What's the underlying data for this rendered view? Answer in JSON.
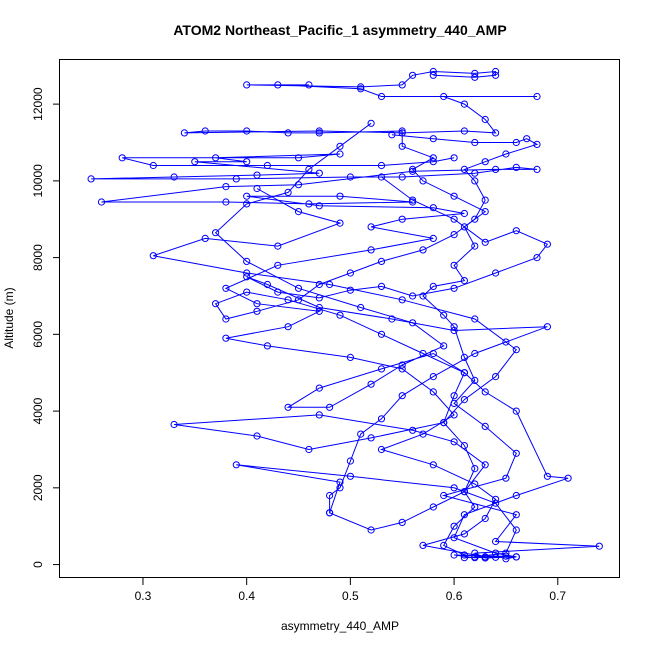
{
  "chart_data": {
    "type": "scatter",
    "title": "ATOM2 Northeast_Pacific_1 asymmetry_440_AMP",
    "xlabel": "asymmetry_440_AMP",
    "ylabel": "Altitude (m)",
    "xlim": [
      0.22,
      0.76
    ],
    "ylim": [
      -350,
      13150
    ],
    "x_ticks": [
      0.3,
      0.4,
      0.5,
      0.6,
      0.7
    ],
    "x_tick_labels": [
      "0.3",
      "0.4",
      "0.5",
      "0.6",
      "0.7"
    ],
    "y_ticks": [
      0,
      2000,
      4000,
      6000,
      8000,
      10000,
      12000
    ],
    "y_tick_labels": [
      "0",
      "2000",
      "4000",
      "6000",
      "8000",
      "10000",
      "12000"
    ],
    "grid": false,
    "legend": "none",
    "color": "#0000ff",
    "markers": "open-circle",
    "connected": true,
    "series": [
      {
        "values": [
          [
            0.61,
            180
          ],
          [
            0.63,
            200
          ],
          [
            0.64,
            190
          ],
          [
            0.65,
            220
          ],
          [
            0.62,
            180
          ],
          [
            0.6,
            250
          ],
          [
            0.66,
            200
          ],
          [
            0.63,
            170
          ],
          [
            0.62,
            300
          ],
          [
            0.74,
            480
          ],
          [
            0.64,
            600
          ],
          [
            0.66,
            1300
          ],
          [
            0.59,
            1800
          ],
          [
            0.65,
            2250
          ],
          [
            0.66,
            2900
          ],
          [
            0.63,
            3600
          ],
          [
            0.6,
            4200
          ],
          [
            0.62,
            4800
          ],
          [
            0.61,
            5400
          ],
          [
            0.6,
            6200
          ],
          [
            0.59,
            6500
          ],
          [
            0.57,
            7000
          ],
          [
            0.58,
            7250
          ],
          [
            0.61,
            7400
          ],
          [
            0.6,
            7800
          ],
          [
            0.62,
            8300
          ],
          [
            0.61,
            8800
          ],
          [
            0.63,
            9200
          ],
          [
            0.6,
            9600
          ],
          [
            0.57,
            10000
          ],
          [
            0.56,
            10300
          ],
          [
            0.58,
            10600
          ],
          [
            0.55,
            10900
          ],
          [
            0.55,
            11300
          ],
          [
            0.47,
            11250
          ],
          [
            0.44,
            11250
          ],
          [
            0.4,
            11300
          ],
          [
            0.36,
            11300
          ],
          [
            0.34,
            11250
          ],
          [
            0.47,
            11300
          ],
          [
            0.55,
            11250
          ],
          [
            0.61,
            11300
          ],
          [
            0.64,
            11250
          ],
          [
            0.63,
            11600
          ],
          [
            0.61,
            12000
          ],
          [
            0.59,
            12200
          ],
          [
            0.68,
            12200
          ],
          [
            0.53,
            12200
          ],
          [
            0.51,
            12400
          ],
          [
            0.43,
            12500
          ],
          [
            0.46,
            12500
          ],
          [
            0.4,
            12500
          ],
          [
            0.51,
            12450
          ],
          [
            0.55,
            12500
          ],
          [
            0.56,
            12750
          ],
          [
            0.58,
            12850
          ],
          [
            0.62,
            12800
          ],
          [
            0.64,
            12850
          ],
          [
            0.64,
            12750
          ],
          [
            0.62,
            12700
          ],
          [
            0.58,
            12750
          ]
        ]
      },
      {
        "values": [
          [
            0.6,
            10600
          ],
          [
            0.58,
            10500
          ],
          [
            0.53,
            10400
          ],
          [
            0.42,
            10400
          ],
          [
            0.31,
            10400
          ],
          [
            0.28,
            10600
          ],
          [
            0.45,
            10600
          ],
          [
            0.49,
            10700
          ],
          [
            0.37,
            10600
          ],
          [
            0.4,
            10500
          ],
          [
            0.35,
            10500
          ],
          [
            0.47,
            10200
          ],
          [
            0.41,
            10150
          ],
          [
            0.33,
            10100
          ],
          [
            0.25,
            10050
          ],
          [
            0.39,
            10050
          ],
          [
            0.5,
            10100
          ],
          [
            0.55,
            10100
          ],
          [
            0.62,
            10200
          ],
          [
            0.66,
            10350
          ],
          [
            0.68,
            10300
          ],
          [
            0.64,
            10300
          ],
          [
            0.56,
            10250
          ],
          [
            0.45,
            9900
          ],
          [
            0.38,
            9850
          ],
          [
            0.26,
            9450
          ],
          [
            0.38,
            9450
          ],
          [
            0.46,
            9400
          ],
          [
            0.56,
            9450
          ],
          [
            0.49,
            9600
          ],
          [
            0.4,
            9600
          ],
          [
            0.47,
            9350
          ],
          [
            0.58,
            9300
          ],
          [
            0.61,
            9150
          ],
          [
            0.55,
            9000
          ],
          [
            0.52,
            8800
          ],
          [
            0.58,
            8500
          ],
          [
            0.52,
            8200
          ],
          [
            0.43,
            7800
          ],
          [
            0.38,
            7200
          ],
          [
            0.41,
            6800
          ],
          [
            0.47,
            6600
          ],
          [
            0.44,
            6200
          ],
          [
            0.38,
            5900
          ],
          [
            0.42,
            5700
          ],
          [
            0.5,
            5400
          ],
          [
            0.55,
            5100
          ],
          [
            0.58,
            4500
          ],
          [
            0.6,
            3900
          ],
          [
            0.57,
            3400
          ],
          [
            0.53,
            3000
          ],
          [
            0.58,
            2600
          ],
          [
            0.62,
            2100
          ],
          [
            0.64,
            1700
          ],
          [
            0.63,
            1200
          ],
          [
            0.61,
            800
          ],
          [
            0.57,
            500
          ],
          [
            0.63,
            200
          ]
        ]
      },
      {
        "values": [
          [
            0.41,
            9800
          ],
          [
            0.45,
            9200
          ],
          [
            0.49,
            8900
          ],
          [
            0.43,
            8300
          ],
          [
            0.36,
            8500
          ],
          [
            0.31,
            8050
          ],
          [
            0.4,
            7600
          ],
          [
            0.48,
            7300
          ],
          [
            0.55,
            6900
          ],
          [
            0.62,
            6400
          ],
          [
            0.66,
            5600
          ],
          [
            0.64,
            4900
          ],
          [
            0.61,
            4300
          ],
          [
            0.59,
            3700
          ],
          [
            0.52,
            3300
          ],
          [
            0.46,
            3000
          ],
          [
            0.41,
            3350
          ],
          [
            0.33,
            3650
          ],
          [
            0.47,
            3900
          ],
          [
            0.56,
            3500
          ],
          [
            0.6,
            3200
          ],
          [
            0.63,
            2600
          ],
          [
            0.61,
            1900
          ],
          [
            0.58,
            1500
          ],
          [
            0.55,
            1100
          ],
          [
            0.52,
            900
          ],
          [
            0.48,
            1350
          ],
          [
            0.49,
            2150
          ],
          [
            0.39,
            2600
          ],
          [
            0.5,
            2300
          ],
          [
            0.6,
            2000
          ],
          [
            0.64,
            1600
          ],
          [
            0.66,
            900
          ],
          [
            0.65,
            300
          ],
          [
            0.62,
            200
          ]
        ]
      },
      {
        "values": [
          [
            0.52,
            11500
          ],
          [
            0.49,
            10900
          ],
          [
            0.46,
            10300
          ],
          [
            0.44,
            9700
          ],
          [
            0.4,
            9400
          ],
          [
            0.37,
            8650
          ],
          [
            0.4,
            7900
          ],
          [
            0.45,
            7200
          ],
          [
            0.51,
            6700
          ],
          [
            0.56,
            6300
          ],
          [
            0.59,
            5700
          ],
          [
            0.55,
            5200
          ],
          [
            0.52,
            4700
          ],
          [
            0.48,
            4100
          ],
          [
            0.44,
            4100
          ],
          [
            0.47,
            4600
          ],
          [
            0.53,
            5100
          ],
          [
            0.58,
            5500
          ],
          [
            0.61,
            5000
          ],
          [
            0.63,
            4500
          ],
          [
            0.66,
            4000
          ],
          [
            0.69,
            2300
          ],
          [
            0.71,
            2250
          ],
          [
            0.66,
            1800
          ],
          [
            0.61,
            1300
          ],
          [
            0.6,
            700
          ],
          [
            0.64,
            300
          ],
          [
            0.66,
            200
          ],
          [
            0.65,
            150
          ]
        ]
      },
      {
        "values": [
          [
            0.53,
            10100
          ],
          [
            0.56,
            9500
          ],
          [
            0.6,
            9000
          ],
          [
            0.63,
            8400
          ],
          [
            0.66,
            8700
          ],
          [
            0.69,
            8350
          ],
          [
            0.68,
            8000
          ],
          [
            0.64,
            7600
          ],
          [
            0.6,
            7200
          ],
          [
            0.56,
            7000
          ],
          [
            0.53,
            7250
          ],
          [
            0.5,
            7150
          ],
          [
            0.47,
            6950
          ],
          [
            0.43,
            7100
          ],
          [
            0.4,
            7500
          ],
          [
            0.42,
            7300
          ],
          [
            0.47,
            6700
          ],
          [
            0.54,
            6400
          ],
          [
            0.6,
            6100
          ],
          [
            0.69,
            6200
          ],
          [
            0.65,
            5800
          ],
          [
            0.62,
            5500
          ],
          [
            0.58,
            4900
          ],
          [
            0.55,
            4400
          ],
          [
            0.53,
            3800
          ],
          [
            0.51,
            3400
          ],
          [
            0.5,
            2700
          ],
          [
            0.49,
            2000
          ],
          [
            0.48,
            1800
          ],
          [
            0.48,
            1350
          ]
        ]
      },
      {
        "values": [
          [
            0.54,
            11200
          ],
          [
            0.58,
            11100
          ],
          [
            0.62,
            11000
          ],
          [
            0.66,
            11000
          ],
          [
            0.67,
            11100
          ],
          [
            0.68,
            10950
          ],
          [
            0.65,
            10700
          ],
          [
            0.63,
            10500
          ],
          [
            0.61,
            10300
          ],
          [
            0.62,
            10000
          ],
          [
            0.63,
            9500
          ],
          [
            0.62,
            9000
          ],
          [
            0.6,
            8600
          ],
          [
            0.57,
            8200
          ],
          [
            0.53,
            7900
          ],
          [
            0.5,
            7600
          ],
          [
            0.47,
            7300
          ],
          [
            0.45,
            6900
          ],
          [
            0.41,
            6600
          ],
          [
            0.38,
            6400
          ],
          [
            0.37,
            6800
          ],
          [
            0.4,
            7100
          ],
          [
            0.44,
            6900
          ],
          [
            0.49,
            6500
          ],
          [
            0.53,
            6000
          ],
          [
            0.57,
            5500
          ],
          [
            0.61,
            5000
          ],
          [
            0.6,
            4400
          ],
          [
            0.59,
            3700
          ],
          [
            0.61,
            3100
          ],
          [
            0.62,
            2500
          ],
          [
            0.61,
            1900
          ],
          [
            0.62,
            1500
          ],
          [
            0.6,
            1000
          ],
          [
            0.59,
            500
          ],
          [
            0.61,
            250
          ]
        ]
      }
    ]
  }
}
